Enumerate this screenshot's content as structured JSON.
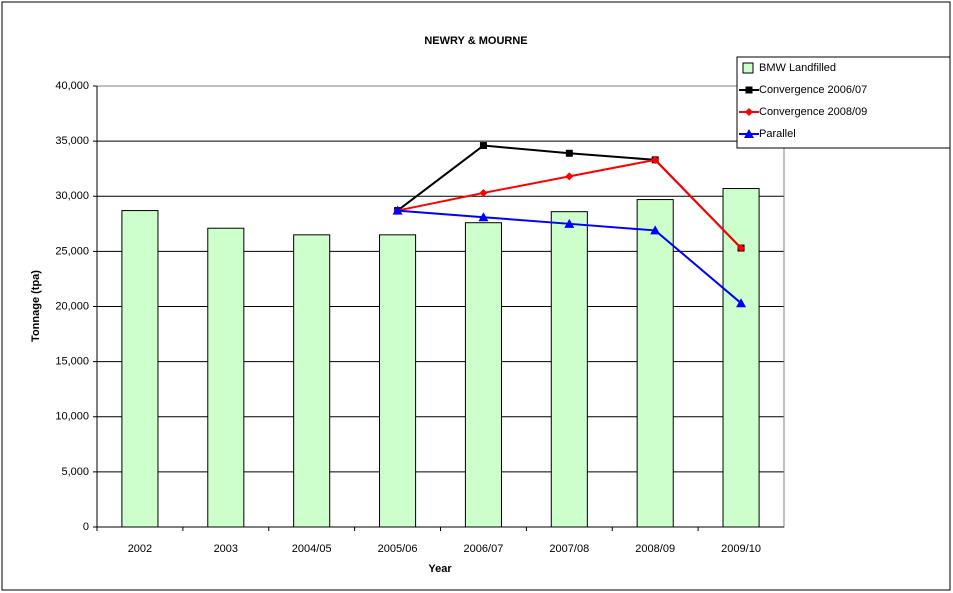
{
  "chart_data": {
    "type": "bar_line",
    "title": "NEWRY & MOURNE",
    "x_label": "Year",
    "y_label": "Tonnage (tpa)",
    "categories": [
      "2002",
      "2003",
      "2004/05",
      "2005/06",
      "2006/07",
      "2007/08",
      "2008/09",
      "2009/10"
    ],
    "series": [
      {
        "name": "BMW Landfilled",
        "type": "bar",
        "color": "#ccffcc",
        "values": [
          28700,
          27100,
          26500,
          26500,
          27600,
          28600,
          29700,
          30700
        ]
      },
      {
        "name": "Convergence 2006/07",
        "type": "line",
        "marker": "square",
        "color": "#000000",
        "values": [
          null,
          null,
          null,
          28700,
          34600,
          33900,
          33300,
          25300
        ]
      },
      {
        "name": "Convergence 2008/09",
        "type": "line",
        "marker": "diamond",
        "color": "#ff0000",
        "values": [
          null,
          null,
          null,
          28700,
          30300,
          31800,
          33300,
          25300
        ]
      },
      {
        "name": "Parallel",
        "type": "line",
        "marker": "triangle",
        "color": "#0000ff",
        "values": [
          null,
          null,
          null,
          28700,
          28100,
          27500,
          26900,
          20300
        ]
      }
    ],
    "ylim": [
      0,
      40000
    ],
    "yticks": [
      0,
      {
        "value": 5000,
        "label": "5,000"
      },
      {
        "value": 10000,
        "label": "10,000"
      },
      {
        "value": 15000,
        "label": "15,000"
      },
      {
        "value": 20000,
        "label": "20,000"
      },
      {
        "value": 25000,
        "label": "25,000"
      },
      {
        "value": 30000,
        "label": "30,000"
      },
      {
        "value": 35000,
        "label": "35,000"
      },
      {
        "value": 40000,
        "label": "40,000"
      }
    ],
    "grid": true,
    "legend": "top-right"
  }
}
